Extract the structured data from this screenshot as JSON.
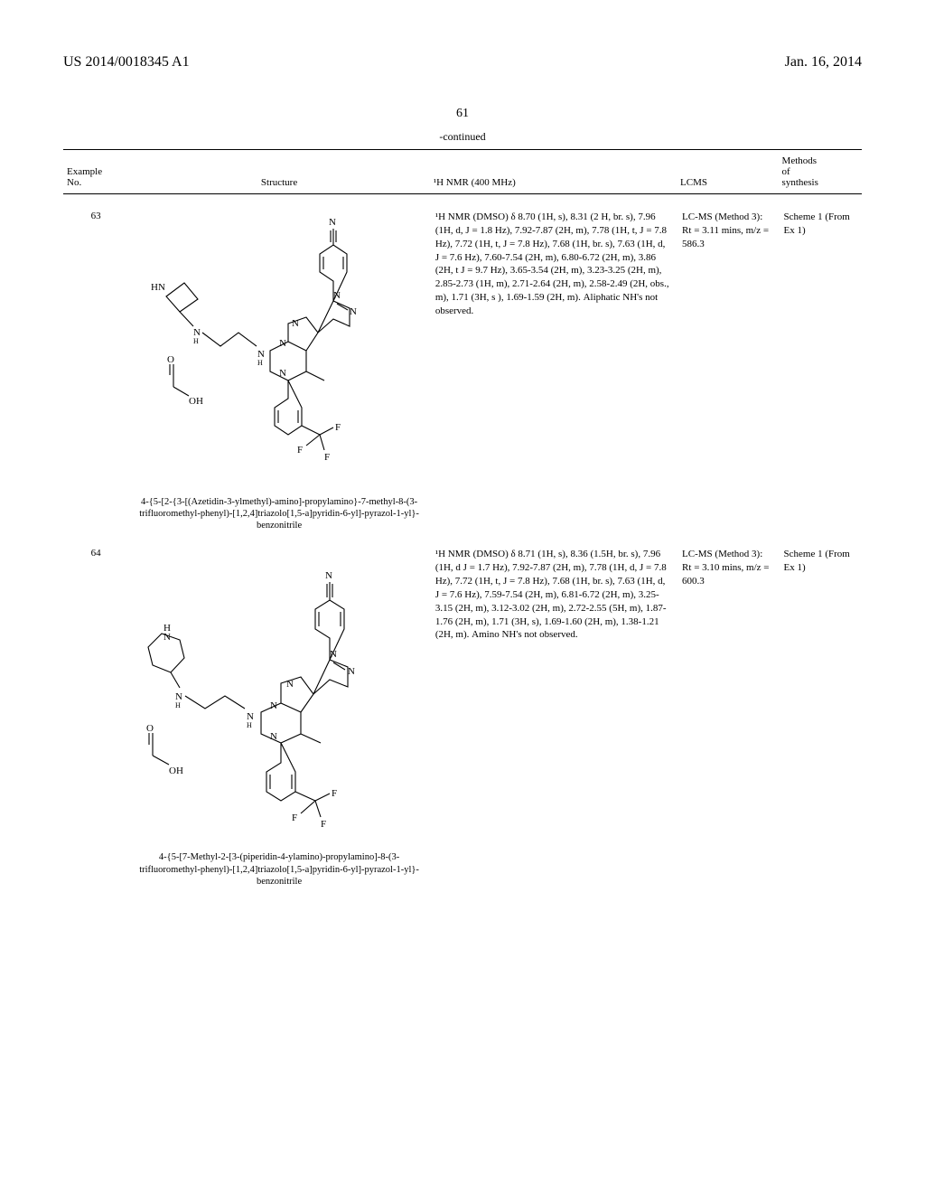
{
  "header": {
    "pub_number": "US 2014/0018345 A1",
    "pub_date": "Jan. 16, 2014"
  },
  "page_number": "61",
  "continued_label": "-continued",
  "table": {
    "columns": {
      "example_no": "Example\nNo.",
      "structure": "Structure",
      "nmr": "¹H NMR (400 MHz)",
      "lcms": "LCMS",
      "methods": "Methods\nof\nsynthesis"
    },
    "rows": [
      {
        "example_no": "63",
        "compound_name": "4-{5-[2-{3-[(Azetidin-3-ylmethyl)-amino]-propylamino}-7-methyl-8-(3-trifluoromethyl-phenyl)-[1,2,4]triazolo[1,5-a]pyridin-6-yl]-pyrazol-1-yl}-benzonitrile",
        "nmr": "¹H NMR (DMSO) δ 8.70 (1H, s), 8.31 (2 H, br. s), 7.96 (1H, d, J = 1.8 Hz), 7.92-7.87 (2H, m), 7.78 (1H, t, J = 7.8 Hz), 7.72 (1H, t, J = 7.8 Hz), 7.68 (1H, br. s), 7.63 (1H, d, J = 7.6 Hz), 7.60-7.54 (2H, m), 6.80-6.72 (2H, m), 3.86 (2H, t J = 9.7 Hz), 3.65-3.54 (2H, m), 3.23-3.25 (2H, m), 2.85-2.73 (1H, m), 2.71-2.64 (2H, m), 2.58-2.49 (2H, obs., m), 1.71 (3H, s ), 1.69-1.59 (2H, m). Aliphatic NH's not observed.",
        "lcms": "LC-MS (Method 3): Rt = 3.11 mins, m/z = 586.3",
        "methods": "Scheme 1 (From Ex 1)"
      },
      {
        "example_no": "64",
        "compound_name": "4-{5-[7-Methyl-2-[3-(piperidin-4-ylamino)-propylamino]-8-(3-trifluoromethyl-phenyl)-[1,2,4]triazolo[1,5-a]pyridin-6-yl]-pyrazol-1-yl}-benzonitrile",
        "nmr": "¹H NMR (DMSO) δ 8.71 (1H, s), 8.36 (1.5H, br. s), 7.96 (1H, d J = 1.7 Hz), 7.92-7.87 (2H, m), 7.78 (1H, d, J = 7.8 Hz), 7.72 (1H, t, J = 7.8 Hz), 7.68 (1H, br. s), 7.63 (1H, d, J = 7.6 Hz), 7.59-7.54 (2H, m), 6.81-6.72 (2H, m), 3.25-3.15 (2H, m), 3.12-3.02 (2H, m), 2.72-2.55 (5H, m), 1.87-1.76 (2H, m), 1.71 (3H, s), 1.69-1.60 (2H, m), 1.38-1.21 (2H, m). Amino NH's not observed.",
        "lcms": "LC-MS (Method 3): Rt = 3.10 mins, m/z = 600.3",
        "methods": "Scheme 1 (From Ex 1)"
      }
    ]
  },
  "structure_svg": {
    "stroke": "#000000",
    "stroke_width": 1.1,
    "font_family": "Times New Roman",
    "label_fontsize": 11
  }
}
